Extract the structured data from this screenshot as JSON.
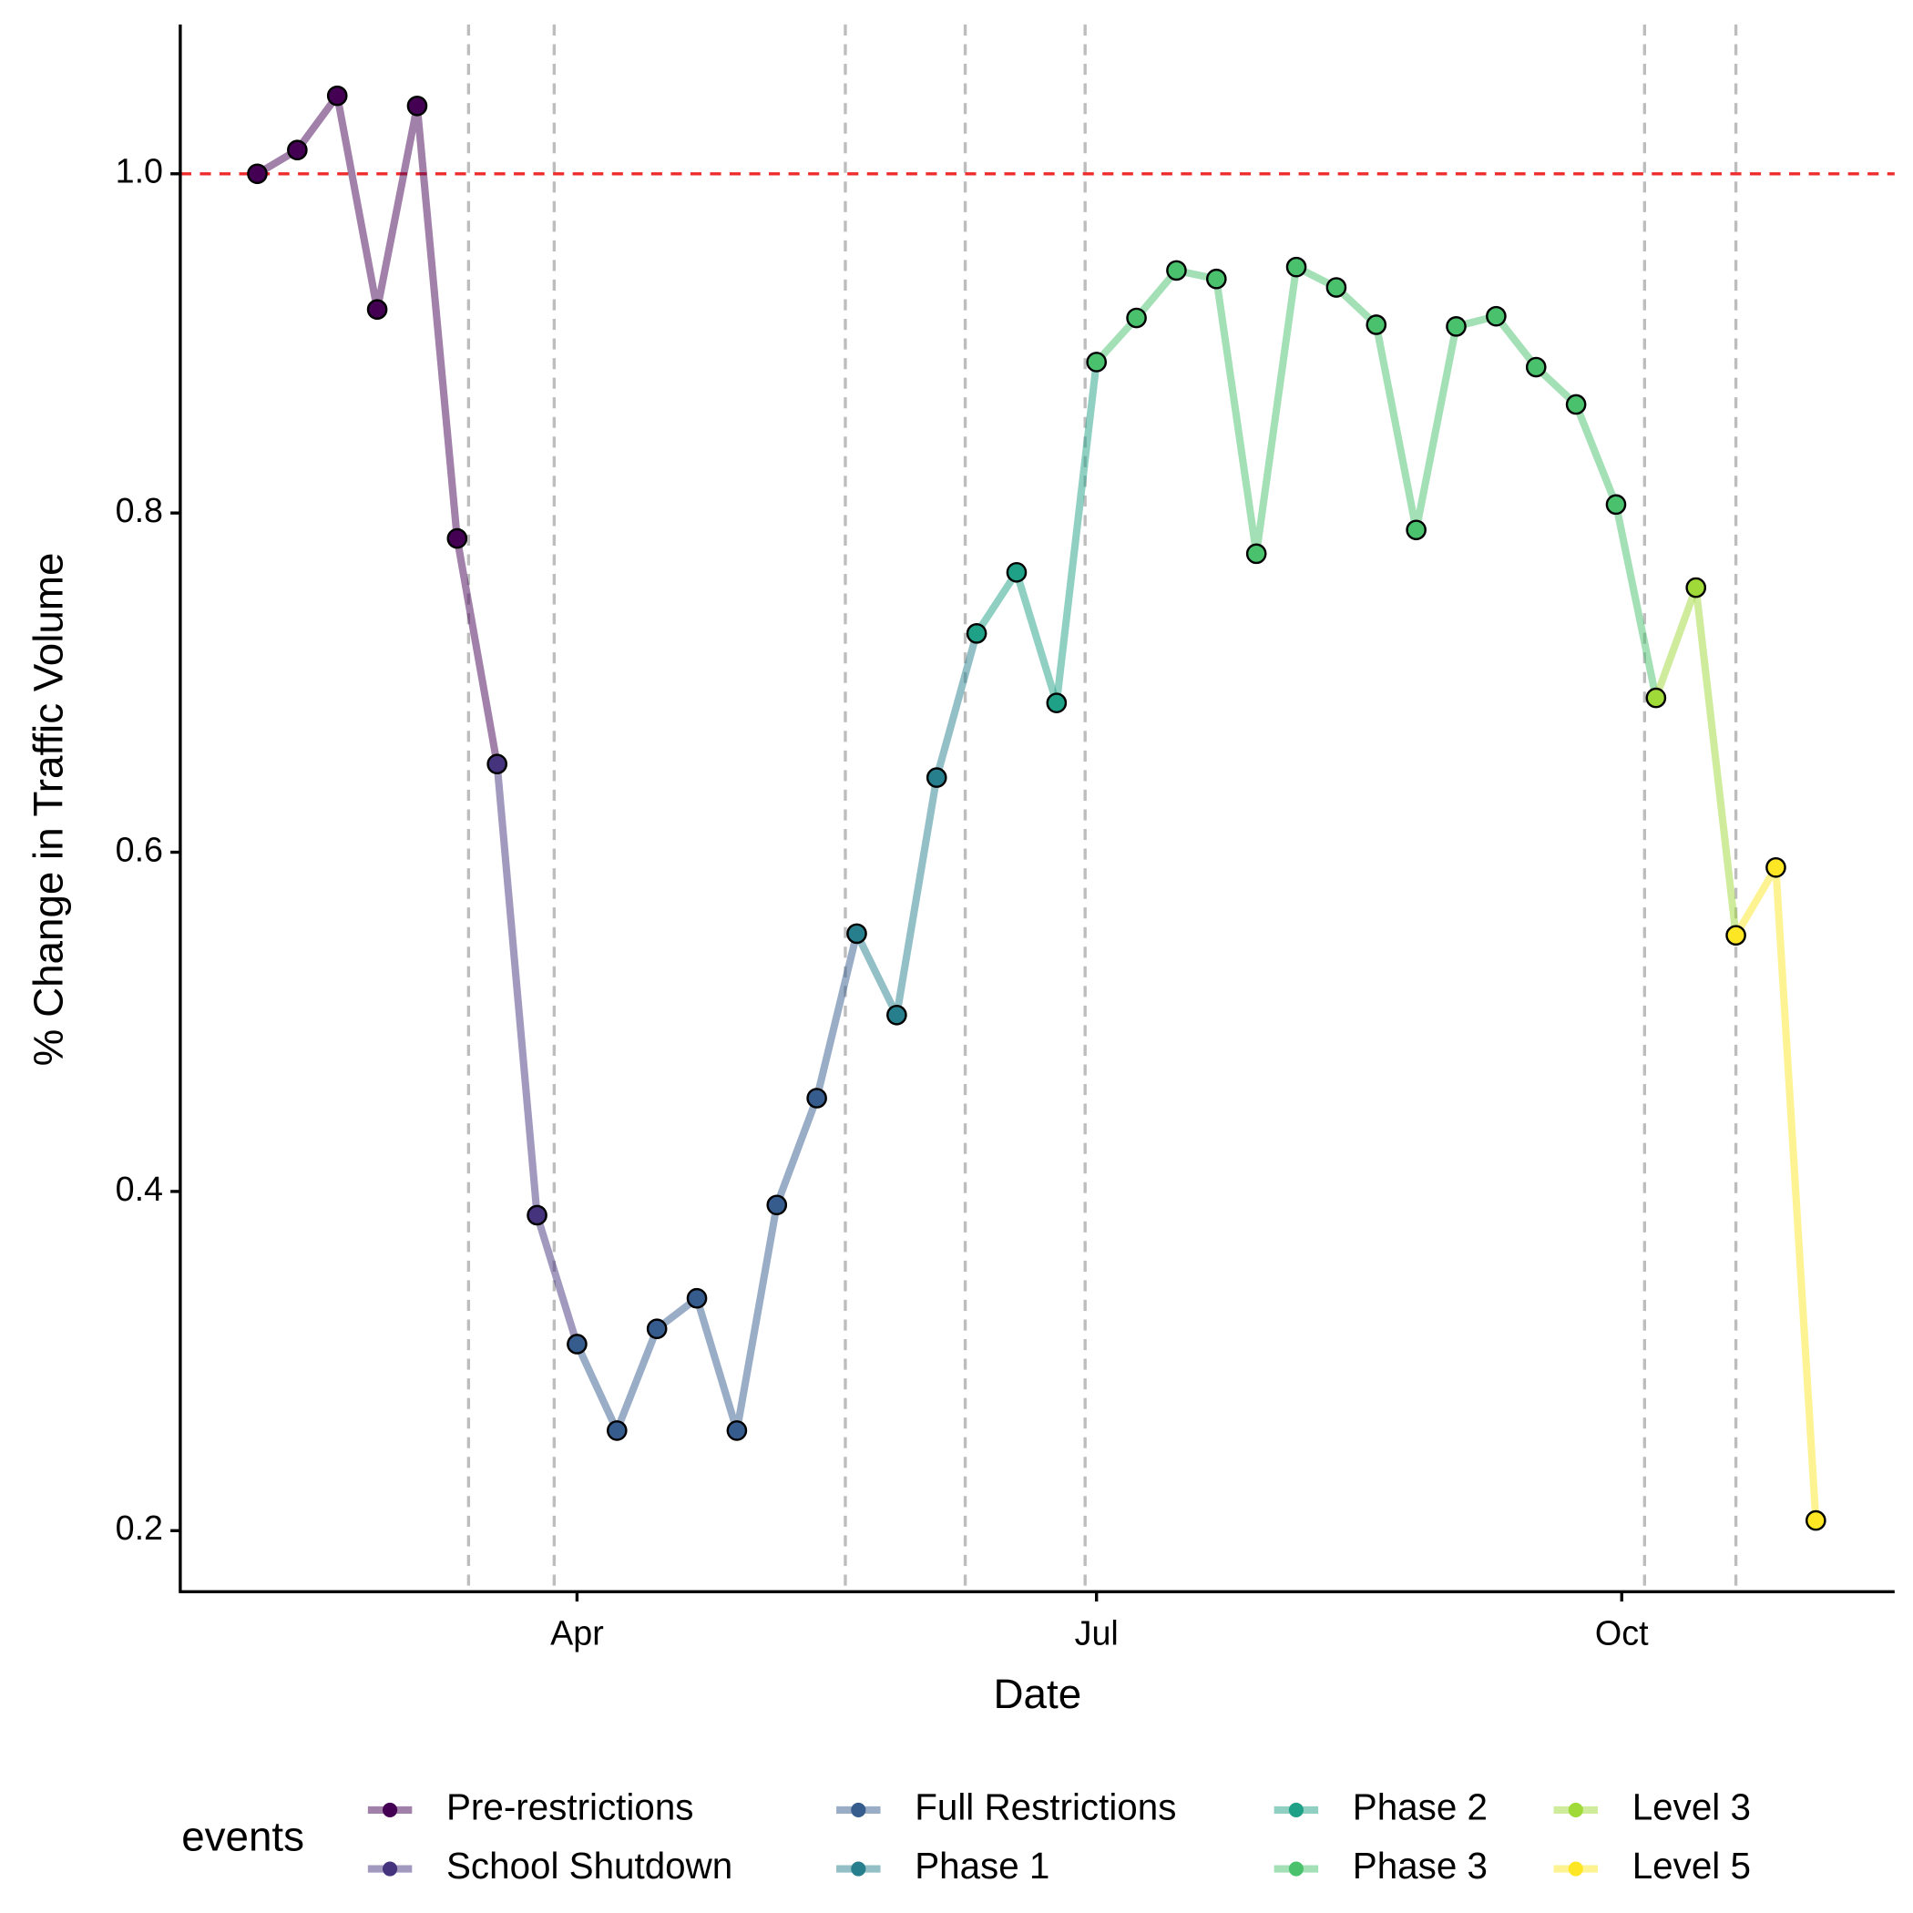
{
  "chart_data": {
    "type": "line",
    "x_label": "Date",
    "y_label": "% Change in Traffic Volume",
    "legend_title": "events",
    "legend": "bottom",
    "xlim": [
      21.5,
      321.8
    ],
    "ylim": [
      0.164,
      1.088
    ],
    "xticks": [
      {
        "value": 91,
        "label": "Apr"
      },
      {
        "value": 182,
        "label": "Jul"
      },
      {
        "value": 274,
        "label": "Oct"
      }
    ],
    "yticks": [
      0.2,
      0.4,
      0.6,
      0.8,
      {
        "value": 1,
        "label": "1.0"
      }
    ],
    "hline": 1,
    "hline_color": "#ee2c2c",
    "event_lines": [
      72,
      87,
      138,
      159,
      180,
      278,
      294
    ],
    "series": [
      {
        "name": "Pre-restrictions",
        "color": "#440154",
        "x": [
          35,
          42,
          49,
          56,
          63,
          70
        ],
        "values": [
          1.0,
          1.014,
          1.046,
          0.92,
          1.04,
          0.785
        ]
      },
      {
        "name": "School Shutdown",
        "color": "#46337e",
        "x": [
          77,
          84
        ],
        "values": [
          0.652,
          0.386
        ]
      },
      {
        "name": "Full Restrictions",
        "color": "#365c8d",
        "x": [
          91,
          98,
          105,
          112,
          119,
          126,
          133
        ],
        "values": [
          0.31,
          0.259,
          0.319,
          0.337,
          0.259,
          0.392,
          0.455
        ]
      },
      {
        "name": "Phase 1",
        "color": "#277f8e",
        "x": [
          140,
          147,
          154
        ],
        "values": [
          0.552,
          0.504,
          0.644
        ]
      },
      {
        "name": "Phase 2",
        "color": "#1fa187",
        "x": [
          161,
          168,
          175
        ],
        "values": [
          0.729,
          0.765,
          0.688
        ]
      },
      {
        "name": "Phase 3",
        "color": "#4ac16d",
        "x": [
          182,
          189,
          196,
          203,
          210,
          217,
          224,
          231,
          238,
          245,
          252,
          259,
          266,
          273
        ],
        "values": [
          0.889,
          0.915,
          0.943,
          0.938,
          0.776,
          0.945,
          0.933,
          0.911,
          0.79,
          0.91,
          0.916,
          0.886,
          0.864,
          0.805
        ]
      },
      {
        "name": "Level 3",
        "color": "#a0da39",
        "x": [
          280,
          287
        ],
        "values": [
          0.691,
          0.756
        ]
      },
      {
        "name": "Level 5",
        "color": "#fde725",
        "x": [
          294,
          301,
          308
        ],
        "values": [
          0.551,
          0.591,
          0.206
        ]
      }
    ]
  }
}
